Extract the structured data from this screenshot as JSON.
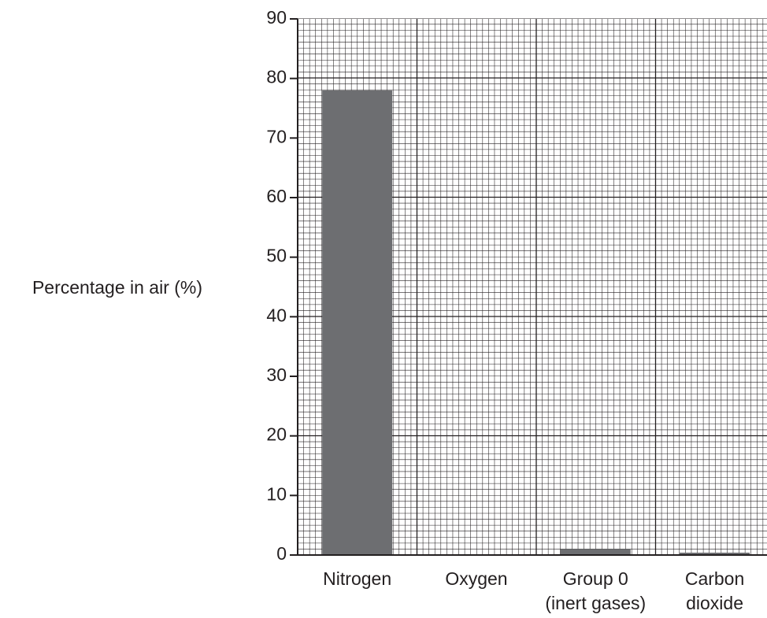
{
  "chart_data": {
    "type": "bar",
    "ylabel": "Percentage in air (%)",
    "xlabel": "",
    "ylim": [
      0,
      90
    ],
    "y_ticks": [
      0,
      10,
      20,
      30,
      40,
      50,
      60,
      70,
      80,
      90
    ],
    "grid": true,
    "categories": [
      [
        "Nitrogen"
      ],
      [
        "Oxygen"
      ],
      [
        "Group 0",
        "(inert gases)"
      ],
      [
        "Carbon",
        "dioxide"
      ]
    ],
    "values": [
      78,
      null,
      1,
      0.04
    ],
    "colors": {
      "bar": "#6d6e71",
      "grid_minor": "#231f20",
      "grid_major": "#231f20",
      "text": "#231f20"
    }
  }
}
